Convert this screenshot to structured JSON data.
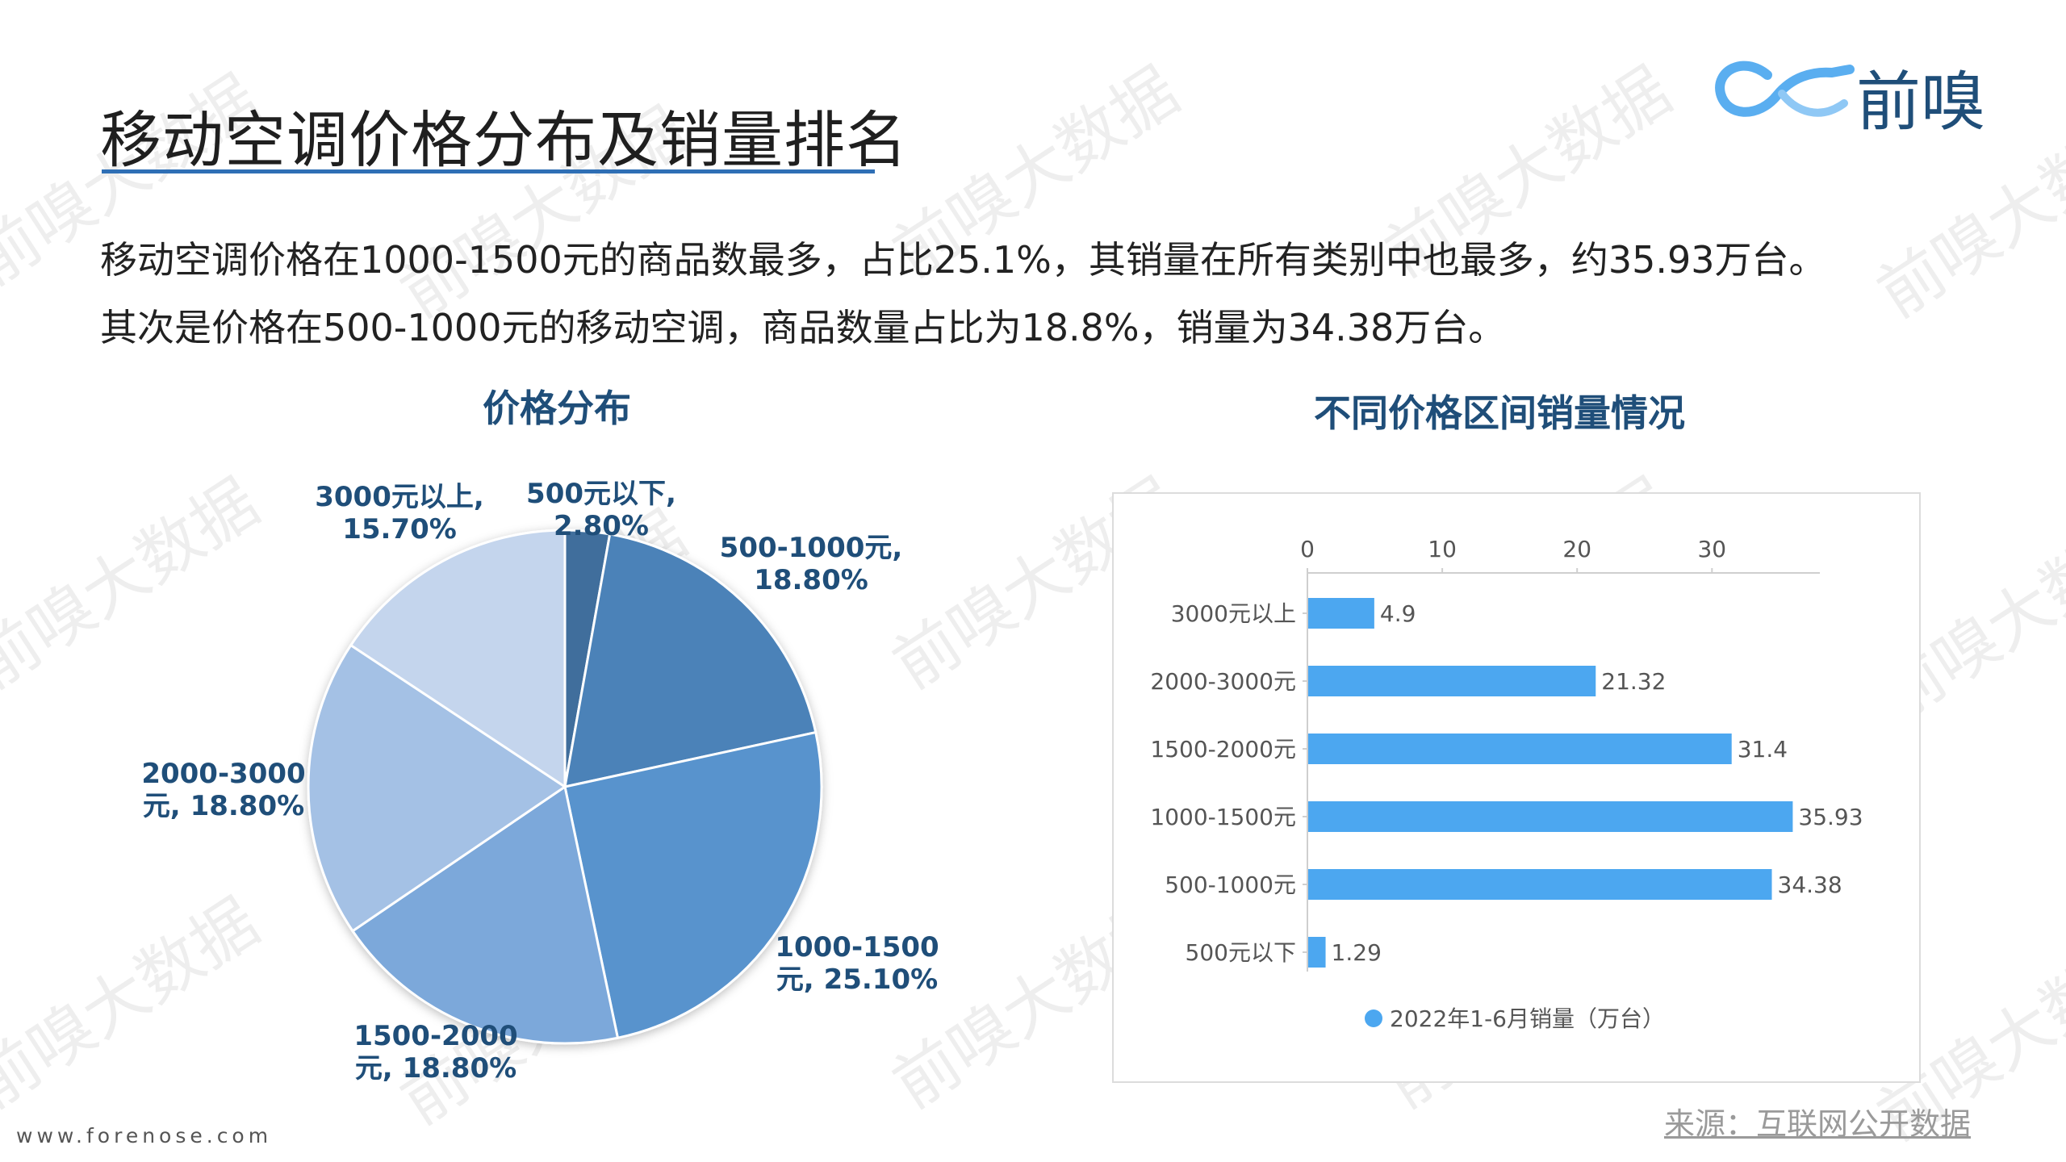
{
  "header": {
    "title": "移动空调价格分布及销量排名",
    "logo_text": "前嗅"
  },
  "summary": {
    "line1": "移动空调价格在1000-1500元的商品数最多，占比25.1%，其销量在所有类别中也最多，约35.93万台。",
    "line2": "其次是价格在500-1000元的移动空调，商品数量占比为18.8%，销量为34.38万台。"
  },
  "footer": {
    "source": "来源：互联网公开数据",
    "website": "www.forenose.com"
  },
  "watermark": "前嗅大数据",
  "chart_data": [
    {
      "type": "pie",
      "title": "价格分布",
      "slices": [
        {
          "label": "500元以下",
          "value": 2.8,
          "label_text": "500元以下,\n2.80%",
          "color": "#3f6e9c"
        },
        {
          "label": "500-1000元",
          "value": 18.8,
          "label_text": "500-1000元,\n18.80%",
          "color": "#4c82b8"
        },
        {
          "label": "1000-1500元",
          "value": 25.1,
          "label_text": "1000-1500\n元, 25.10%",
          "color": "#5893cd"
        },
        {
          "label": "1500-2000元",
          "value": 18.8,
          "label_text": "1500-2000\n元, 18.80%",
          "color": "#7ba8da"
        },
        {
          "label": "2000-3000元",
          "value": 18.8,
          "label_text": "2000-3000\n元, 18.80%",
          "color": "#a4c1e5"
        },
        {
          "label": "3000元以上",
          "value": 15.7,
          "label_text": "3000元以上,\n15.70%",
          "color": "#c4d5ed"
        }
      ]
    },
    {
      "type": "bar",
      "orientation": "horizontal",
      "title": "不同价格区间销量情况",
      "categories": [
        "3000元以上",
        "2000-3000元",
        "1500-2000元",
        "1000-1500元",
        "500-1000元",
        "500元以下"
      ],
      "series": [
        {
          "name": "2022年1-6月销量（万台）",
          "values": [
            4.9,
            21.32,
            31.4,
            35.93,
            34.38,
            1.29
          ],
          "color": "#4ca7f0"
        }
      ],
      "xlim": [
        0,
        38
      ],
      "xticks": [
        0,
        10,
        20,
        30
      ],
      "legend": "bottom"
    }
  ]
}
